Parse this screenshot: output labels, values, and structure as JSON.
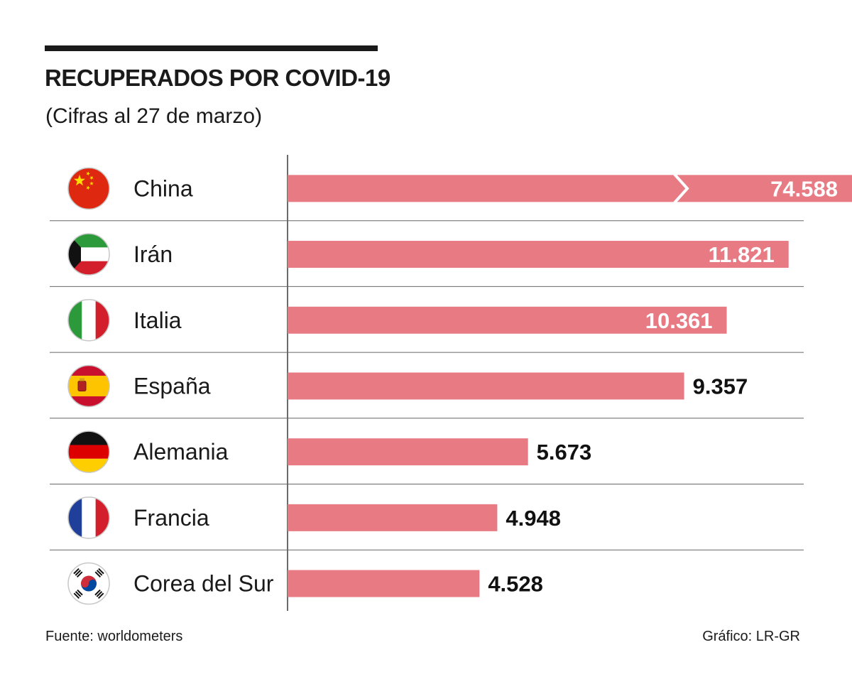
{
  "header": {
    "title": "RECUPERADOS POR COVID-19",
    "subtitle": "(Cifras al 27 de marzo)"
  },
  "footer": {
    "source": "Fuente: worldometers",
    "credit": "Gráfico: LR-GR"
  },
  "colors": {
    "bar": "#e87a84",
    "axis": "#3a3a3a",
    "divider": "#666666",
    "label_on_bar": "#ffffff",
    "label_outside": "#111111"
  },
  "chart_data": {
    "type": "bar",
    "orientation": "horizontal",
    "title": "RECUPERADOS POR COVID-19",
    "subtitle": "(Cifras al 27 de marzo)",
    "categories": [
      "China",
      "Irán",
      "Italia",
      "España",
      "Alemania",
      "Francia",
      "Corea del Sur"
    ],
    "flags": [
      "china-flag-icon",
      "iran-flag-icon",
      "italy-flag-icon",
      "spain-flag-icon",
      "germany-flag-icon",
      "france-flag-icon",
      "south-korea-flag-icon"
    ],
    "values": [
      74588,
      11821,
      10361,
      9357,
      5673,
      4948,
      4528
    ],
    "value_labels": [
      "74.588",
      "11.821",
      "10.361",
      "9.357",
      "5.673",
      "4.948",
      "4.528"
    ],
    "broken_bar": "China",
    "xlabel": "",
    "ylabel": "",
    "grid": false,
    "legend": "none"
  }
}
